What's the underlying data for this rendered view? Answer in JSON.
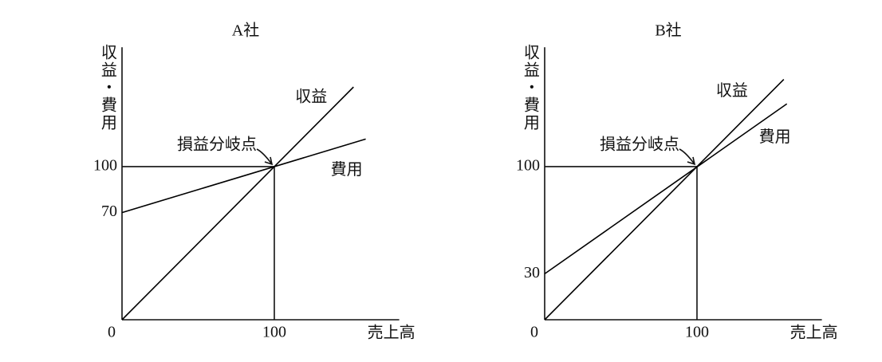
{
  "chart_data": [
    {
      "type": "line",
      "title": "A社",
      "ylabel": "収益・費用",
      "xlabel": "売上高",
      "xlim": [
        0,
        182
      ],
      "ylim": [
        0,
        178
      ],
      "xticks": [
        0,
        100
      ],
      "yticks": [
        70,
        100
      ],
      "series": [
        {
          "name": "収益",
          "color": "#000000",
          "x": [
            0,
            152
          ],
          "values": [
            0,
            152
          ]
        },
        {
          "name": "費用",
          "color": "#000000",
          "x": [
            0,
            160
          ],
          "values": [
            70,
            118
          ]
        }
      ],
      "annotation": {
        "text": "損益分岐点",
        "x": 100,
        "y": 100
      }
    },
    {
      "type": "line",
      "title": "B社",
      "ylabel": "収益・費用",
      "xlabel": "売上高",
      "xlim": [
        0,
        182
      ],
      "ylim": [
        0,
        178
      ],
      "xticks": [
        0,
        100
      ],
      "yticks": [
        30,
        100
      ],
      "series": [
        {
          "name": "収益",
          "color": "#000000",
          "x": [
            0,
            157
          ],
          "values": [
            0,
            157
          ]
        },
        {
          "name": "費用",
          "color": "#000000",
          "x": [
            0,
            159
          ],
          "values": [
            30,
            141
          ]
        }
      ],
      "annotation": {
        "text": "損益分岐点",
        "x": 100,
        "y": 100
      }
    }
  ]
}
